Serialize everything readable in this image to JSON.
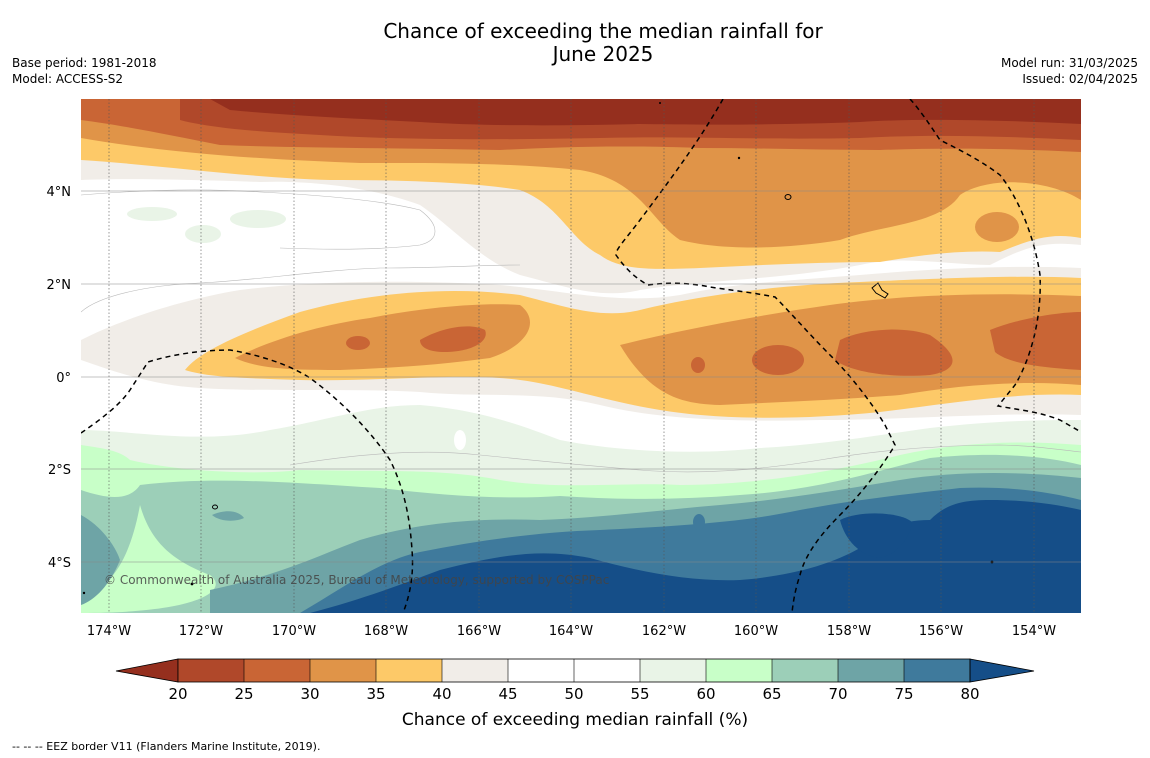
{
  "title_line1": "Chance of exceeding the median rainfall for",
  "title_line2": "June 2025",
  "meta": {
    "base_period": "Base period: 1981-2018",
    "model": "Model: ACCESS-S2",
    "model_run": "Model run: 31/03/2025",
    "issued": "Issued: 02/04/2025"
  },
  "copyright": "© Commonwealth of Australia 2025, Bureau of Meteorology, supported by COSPPac",
  "footnote": "--  --  -- EEZ border V11 (Flanders Marine Institute, 2019).",
  "map": {
    "lon_ticks": [
      "174°W",
      "172°W",
      "170°W",
      "168°W",
      "166°W",
      "164°W",
      "162°W",
      "160°W",
      "158°W",
      "156°W",
      "154°W"
    ],
    "lat_ticks": [
      "4°N",
      "2°N",
      "0°",
      "2°S",
      "4°S"
    ]
  },
  "colorbar": {
    "label": "Chance of exceeding median rainfall (%)",
    "ticks": [
      "20",
      "25",
      "30",
      "35",
      "40",
      "45",
      "50",
      "55",
      "60",
      "65",
      "70",
      "75",
      "80"
    ],
    "colors": {
      "below20": "#952f1e",
      "20_25": "#b0482a",
      "25_30": "#c96535",
      "30_35": "#e09448",
      "35_40": "#fdc968",
      "40_45": "#f1ede8",
      "45_50": "#ffffff",
      "50_55": "#ffffff",
      "55_60": "#e9f4e7",
      "60_65": "#c8ffc8",
      "65_70": "#9ccfb8",
      "70_75": "#6ea4a6",
      "75_80": "#3f7a9c",
      "above80": "#154e88"
    }
  }
}
